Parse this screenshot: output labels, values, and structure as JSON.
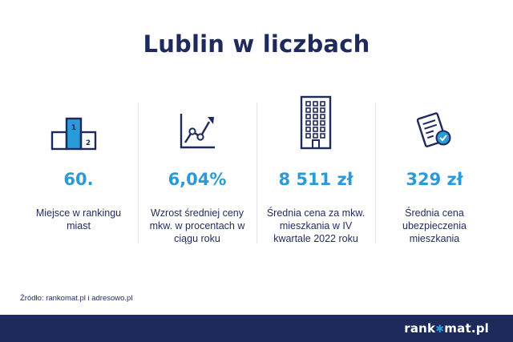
{
  "title": "Lublin w liczbach",
  "stats": [
    {
      "icon": "podium-icon",
      "value": "60.",
      "label": "Miejsce w rankingu miast",
      "podium_first": "1",
      "podium_second": "2"
    },
    {
      "icon": "growth-chart-icon",
      "value": "6,04%",
      "label": "Wzrost średniej ceny mkw. w procentach w ciągu roku"
    },
    {
      "icon": "apartment-building-icon",
      "value": "8 511 zł",
      "label": "Średnia cena za mkw. mieszkania w IV kwartale 2022 roku"
    },
    {
      "icon": "insurance-document-icon",
      "value": "329 zł",
      "label": "Średnia cena ubezpieczenia mieszkania"
    }
  ],
  "source": "Źródło: rankomat.pl i adresowo.pl",
  "logo": {
    "before": "rank",
    "star": "✱",
    "after": "mat.pl"
  },
  "colors": {
    "navy": "#1f2a5c",
    "accent": "#2b9ad9",
    "divider": "#e6e8ef"
  }
}
